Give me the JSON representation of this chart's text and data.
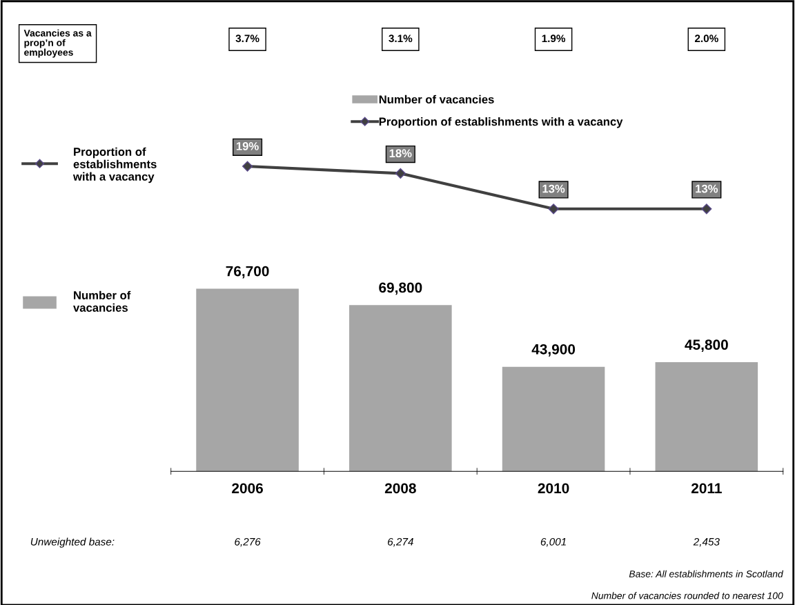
{
  "chart_data": {
    "type": "bar",
    "categories": [
      "2006",
      "2008",
      "2010",
      "2011"
    ],
    "series": [
      {
        "name": "Number of vacancies",
        "color": "#a6a6a6",
        "values": [
          76700,
          69800,
          43900,
          45800
        ],
        "value_labels": [
          "76,700",
          "69,800",
          "43,900",
          "45,800"
        ]
      },
      {
        "name": "Proportion of establishments with a vacancy",
        "type": "line",
        "axis": "y2",
        "color": "#404040",
        "values": [
          19,
          18,
          13,
          13
        ],
        "value_labels": [
          "19%",
          "18%",
          "13%",
          "13%"
        ]
      }
    ],
    "ylim": [
      0,
      140000
    ],
    "y2lim": [
      -24,
      23
    ],
    "tick_labels": "x",
    "marker": "diamond",
    "legend": "top",
    "annotations": [
      "Vacancies as a\nprop’n of\nemployees",
      "3.7%",
      "3.1%",
      "1.9%",
      "2.0%",
      "Proportion of\nestablishments\nwith a vacancy",
      "Number of\nvacancies",
      "Unweighted base:",
      "6,276",
      "6,274",
      "6,001",
      "2,453",
      "Base: All establishments in Scotland",
      "Number of vacancies rounded to nearest 100"
    ]
  }
}
